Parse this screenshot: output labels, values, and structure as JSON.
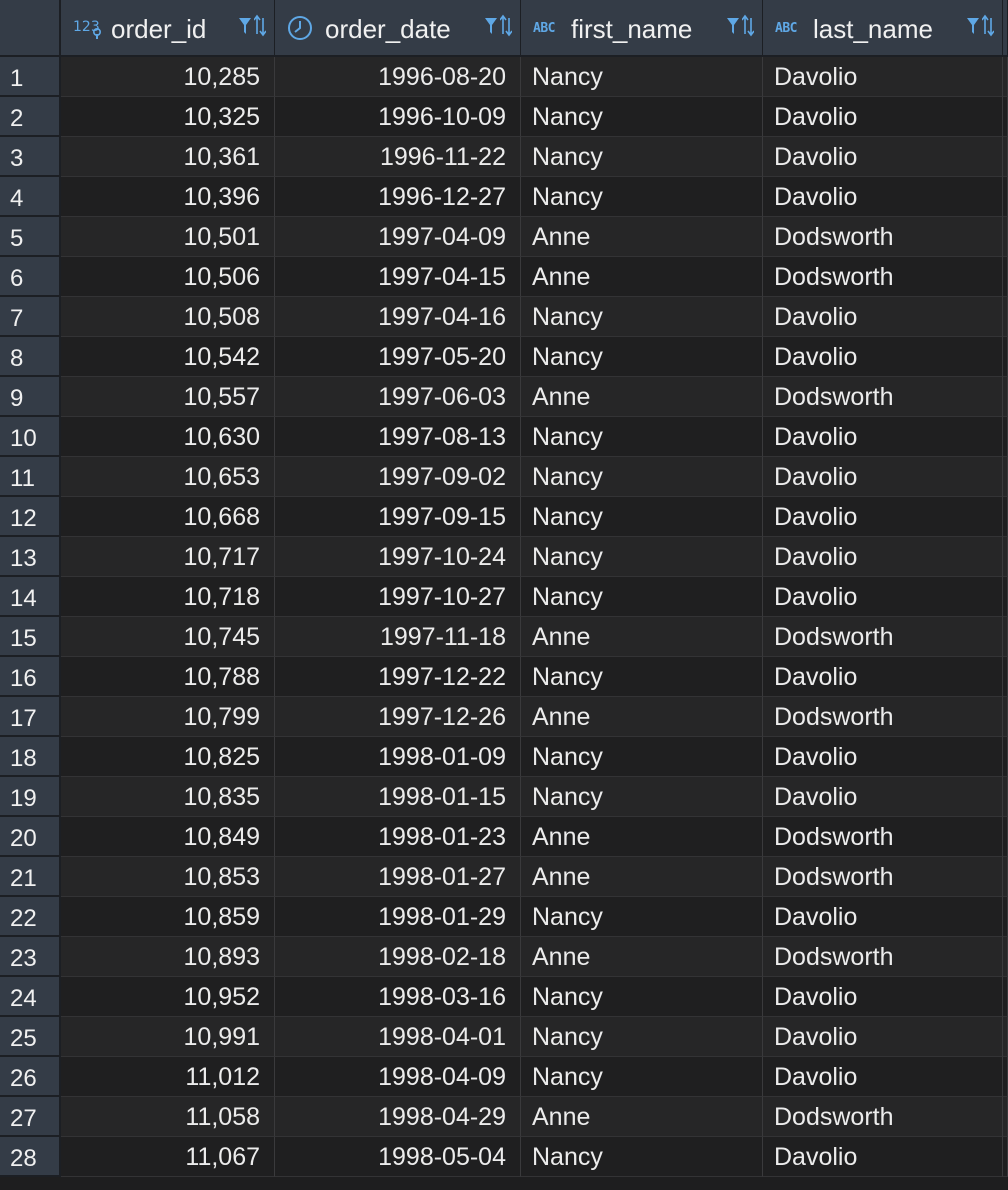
{
  "columns": [
    {
      "key": "order_id",
      "label": "order_id",
      "type_icon": "numeric-key-icon"
    },
    {
      "key": "order_date",
      "label": "order_date",
      "type_icon": "clock-icon"
    },
    {
      "key": "first_name",
      "label": "first_name",
      "type_icon": "abc-text-icon",
      "type_text": "ABC"
    },
    {
      "key": "last_name",
      "label": "last_name",
      "type_icon": "abc-text-icon",
      "type_text": "ABC"
    }
  ],
  "rows": [
    {
      "n": "1",
      "order_id": "10,285",
      "order_date": "1996-08-20",
      "first_name": "Nancy",
      "last_name": "Davolio"
    },
    {
      "n": "2",
      "order_id": "10,325",
      "order_date": "1996-10-09",
      "first_name": "Nancy",
      "last_name": "Davolio"
    },
    {
      "n": "3",
      "order_id": "10,361",
      "order_date": "1996-11-22",
      "first_name": "Nancy",
      "last_name": "Davolio"
    },
    {
      "n": "4",
      "order_id": "10,396",
      "order_date": "1996-12-27",
      "first_name": "Nancy",
      "last_name": "Davolio"
    },
    {
      "n": "5",
      "order_id": "10,501",
      "order_date": "1997-04-09",
      "first_name": "Anne",
      "last_name": "Dodsworth"
    },
    {
      "n": "6",
      "order_id": "10,506",
      "order_date": "1997-04-15",
      "first_name": "Anne",
      "last_name": "Dodsworth"
    },
    {
      "n": "7",
      "order_id": "10,508",
      "order_date": "1997-04-16",
      "first_name": "Nancy",
      "last_name": "Davolio"
    },
    {
      "n": "8",
      "order_id": "10,542",
      "order_date": "1997-05-20",
      "first_name": "Nancy",
      "last_name": "Davolio"
    },
    {
      "n": "9",
      "order_id": "10,557",
      "order_date": "1997-06-03",
      "first_name": "Anne",
      "last_name": "Dodsworth"
    },
    {
      "n": "10",
      "order_id": "10,630",
      "order_date": "1997-08-13",
      "first_name": "Nancy",
      "last_name": "Davolio"
    },
    {
      "n": "11",
      "order_id": "10,653",
      "order_date": "1997-09-02",
      "first_name": "Nancy",
      "last_name": "Davolio"
    },
    {
      "n": "12",
      "order_id": "10,668",
      "order_date": "1997-09-15",
      "first_name": "Nancy",
      "last_name": "Davolio"
    },
    {
      "n": "13",
      "order_id": "10,717",
      "order_date": "1997-10-24",
      "first_name": "Nancy",
      "last_name": "Davolio"
    },
    {
      "n": "14",
      "order_id": "10,718",
      "order_date": "1997-10-27",
      "first_name": "Nancy",
      "last_name": "Davolio"
    },
    {
      "n": "15",
      "order_id": "10,745",
      "order_date": "1997-11-18",
      "first_name": "Anne",
      "last_name": "Dodsworth"
    },
    {
      "n": "16",
      "order_id": "10,788",
      "order_date": "1997-12-22",
      "first_name": "Nancy",
      "last_name": "Davolio"
    },
    {
      "n": "17",
      "order_id": "10,799",
      "order_date": "1997-12-26",
      "first_name": "Anne",
      "last_name": "Dodsworth"
    },
    {
      "n": "18",
      "order_id": "10,825",
      "order_date": "1998-01-09",
      "first_name": "Nancy",
      "last_name": "Davolio"
    },
    {
      "n": "19",
      "order_id": "10,835",
      "order_date": "1998-01-15",
      "first_name": "Nancy",
      "last_name": "Davolio"
    },
    {
      "n": "20",
      "order_id": "10,849",
      "order_date": "1998-01-23",
      "first_name": "Anne",
      "last_name": "Dodsworth"
    },
    {
      "n": "21",
      "order_id": "10,853",
      "order_date": "1998-01-27",
      "first_name": "Anne",
      "last_name": "Dodsworth"
    },
    {
      "n": "22",
      "order_id": "10,859",
      "order_date": "1998-01-29",
      "first_name": "Nancy",
      "last_name": "Davolio"
    },
    {
      "n": "23",
      "order_id": "10,893",
      "order_date": "1998-02-18",
      "first_name": "Anne",
      "last_name": "Dodsworth"
    },
    {
      "n": "24",
      "order_id": "10,952",
      "order_date": "1998-03-16",
      "first_name": "Nancy",
      "last_name": "Davolio"
    },
    {
      "n": "25",
      "order_id": "10,991",
      "order_date": "1998-04-01",
      "first_name": "Nancy",
      "last_name": "Davolio"
    },
    {
      "n": "26",
      "order_id": "11,012",
      "order_date": "1998-04-09",
      "first_name": "Nancy",
      "last_name": "Davolio"
    },
    {
      "n": "27",
      "order_id": "11,058",
      "order_date": "1998-04-29",
      "first_name": "Anne",
      "last_name": "Dodsworth"
    },
    {
      "n": "28",
      "order_id": "11,067",
      "order_date": "1998-05-04",
      "first_name": "Nancy",
      "last_name": "Davolio"
    }
  ],
  "colors": {
    "header_bg": "#343c47",
    "icon_accent": "#5fa8e6",
    "row_odd": "#262627",
    "row_even": "#1f1f20"
  },
  "header_tools": [
    "filter-icon",
    "sort-icon"
  ]
}
